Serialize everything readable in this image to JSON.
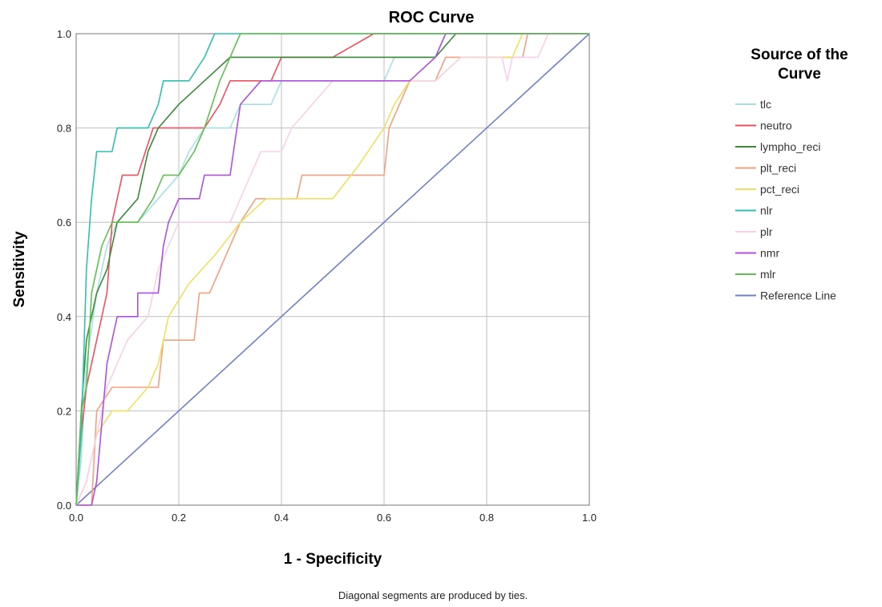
{
  "chart_data": {
    "type": "line",
    "title": "ROC Curve",
    "xlabel": "1 - Specificity",
    "ylabel": "Sensitivity",
    "xlim": [
      0.0,
      1.0
    ],
    "ylim": [
      0.0,
      1.0
    ],
    "xticks": [
      "0.0",
      "0.2",
      "0.4",
      "0.6",
      "0.8",
      "1.0"
    ],
    "yticks": [
      "0.0",
      "0.2",
      "0.4",
      "0.6",
      "0.8",
      "1.0"
    ],
    "grid": true,
    "legend_title": "Source of the Curve",
    "legend_position": "right",
    "footnote": "Diagonal segments are produced by ties.",
    "series": [
      {
        "name": "tlc",
        "color": "#a8e0e4",
        "points": [
          [
            0,
            0
          ],
          [
            0.01,
            0.1
          ],
          [
            0.02,
            0.3
          ],
          [
            0.04,
            0.45
          ],
          [
            0.06,
            0.55
          ],
          [
            0.08,
            0.6
          ],
          [
            0.12,
            0.6
          ],
          [
            0.16,
            0.65
          ],
          [
            0.2,
            0.7
          ],
          [
            0.22,
            0.75
          ],
          [
            0.25,
            0.8
          ],
          [
            0.3,
            0.8
          ],
          [
            0.32,
            0.85
          ],
          [
            0.38,
            0.85
          ],
          [
            0.4,
            0.9
          ],
          [
            0.5,
            0.9
          ],
          [
            0.6,
            0.9
          ],
          [
            0.62,
            0.95
          ],
          [
            0.7,
            0.95
          ],
          [
            0.72,
            1.0
          ],
          [
            1.0,
            1.0
          ]
        ]
      },
      {
        "name": "neutro",
        "color": "#f05060",
        "points": [
          [
            0,
            0
          ],
          [
            0.01,
            0.15
          ],
          [
            0.02,
            0.25
          ],
          [
            0.04,
            0.35
          ],
          [
            0.06,
            0.45
          ],
          [
            0.07,
            0.6
          ],
          [
            0.09,
            0.7
          ],
          [
            0.12,
            0.7
          ],
          [
            0.15,
            0.8
          ],
          [
            0.2,
            0.8
          ],
          [
            0.25,
            0.8
          ],
          [
            0.28,
            0.85
          ],
          [
            0.3,
            0.9
          ],
          [
            0.38,
            0.9
          ],
          [
            0.4,
            0.95
          ],
          [
            0.5,
            0.95
          ],
          [
            0.58,
            1.0
          ],
          [
            1.0,
            1.0
          ]
        ]
      },
      {
        "name": "lympho_reci",
        "color": "#3a8a3a",
        "points": [
          [
            0,
            0
          ],
          [
            0.01,
            0.2
          ],
          [
            0.02,
            0.35
          ],
          [
            0.04,
            0.45
          ],
          [
            0.06,
            0.5
          ],
          [
            0.08,
            0.6
          ],
          [
            0.12,
            0.65
          ],
          [
            0.14,
            0.75
          ],
          [
            0.16,
            0.8
          ],
          [
            0.2,
            0.85
          ],
          [
            0.25,
            0.9
          ],
          [
            0.3,
            0.95
          ],
          [
            0.4,
            0.95
          ],
          [
            0.5,
            0.95
          ],
          [
            0.6,
            0.95
          ],
          [
            0.7,
            0.95
          ],
          [
            0.74,
            1.0
          ],
          [
            1.0,
            1.0
          ]
        ]
      },
      {
        "name": "plt_reci",
        "color": "#f4a080",
        "points": [
          [
            0,
            0
          ],
          [
            0.03,
            0.0
          ],
          [
            0.04,
            0.2
          ],
          [
            0.07,
            0.25
          ],
          [
            0.12,
            0.25
          ],
          [
            0.16,
            0.25
          ],
          [
            0.17,
            0.35
          ],
          [
            0.2,
            0.35
          ],
          [
            0.23,
            0.35
          ],
          [
            0.24,
            0.45
          ],
          [
            0.26,
            0.45
          ],
          [
            0.28,
            0.5
          ],
          [
            0.3,
            0.55
          ],
          [
            0.32,
            0.6
          ],
          [
            0.35,
            0.65
          ],
          [
            0.4,
            0.65
          ],
          [
            0.43,
            0.65
          ],
          [
            0.44,
            0.7
          ],
          [
            0.55,
            0.7
          ],
          [
            0.6,
            0.7
          ],
          [
            0.61,
            0.8
          ],
          [
            0.63,
            0.85
          ],
          [
            0.65,
            0.9
          ],
          [
            0.7,
            0.9
          ],
          [
            0.72,
            0.95
          ],
          [
            0.8,
            0.95
          ],
          [
            0.87,
            0.95
          ],
          [
            0.88,
            1.0
          ],
          [
            1.0,
            1.0
          ]
        ]
      },
      {
        "name": "pct_reci",
        "color": "#f0e060",
        "points": [
          [
            0,
            0
          ],
          [
            0.02,
            0.05
          ],
          [
            0.04,
            0.15
          ],
          [
            0.07,
            0.2
          ],
          [
            0.1,
            0.2
          ],
          [
            0.14,
            0.25
          ],
          [
            0.16,
            0.3
          ],
          [
            0.18,
            0.4
          ],
          [
            0.22,
            0.47
          ],
          [
            0.27,
            0.53
          ],
          [
            0.32,
            0.6
          ],
          [
            0.37,
            0.65
          ],
          [
            0.45,
            0.65
          ],
          [
            0.5,
            0.65
          ],
          [
            0.55,
            0.72
          ],
          [
            0.6,
            0.8
          ],
          [
            0.62,
            0.85
          ],
          [
            0.65,
            0.9
          ],
          [
            0.7,
            0.9
          ],
          [
            0.72,
            0.92
          ],
          [
            0.75,
            0.95
          ],
          [
            0.85,
            0.95
          ],
          [
            0.87,
            1.0
          ],
          [
            1.0,
            1.0
          ]
        ]
      },
      {
        "name": "nlr",
        "color": "#30c0b0",
        "points": [
          [
            0,
            0
          ],
          [
            0.01,
            0.15
          ],
          [
            0.02,
            0.5
          ],
          [
            0.03,
            0.65
          ],
          [
            0.04,
            0.75
          ],
          [
            0.07,
            0.75
          ],
          [
            0.08,
            0.8
          ],
          [
            0.14,
            0.8
          ],
          [
            0.16,
            0.85
          ],
          [
            0.17,
            0.9
          ],
          [
            0.2,
            0.9
          ],
          [
            0.22,
            0.9
          ],
          [
            0.25,
            0.95
          ],
          [
            0.27,
            1.0
          ],
          [
            1.0,
            1.0
          ]
        ]
      },
      {
        "name": "plr",
        "color": "#f8d0e8",
        "points": [
          [
            0,
            0
          ],
          [
            0.02,
            0.05
          ],
          [
            0.04,
            0.15
          ],
          [
            0.06,
            0.25
          ],
          [
            0.08,
            0.3
          ],
          [
            0.1,
            0.35
          ],
          [
            0.14,
            0.4
          ],
          [
            0.16,
            0.5
          ],
          [
            0.18,
            0.55
          ],
          [
            0.2,
            0.6
          ],
          [
            0.3,
            0.6
          ],
          [
            0.34,
            0.7
          ],
          [
            0.36,
            0.75
          ],
          [
            0.4,
            0.75
          ],
          [
            0.42,
            0.8
          ],
          [
            0.5,
            0.9
          ],
          [
            0.6,
            0.9
          ],
          [
            0.7,
            0.9
          ],
          [
            0.75,
            0.95
          ],
          [
            0.83,
            0.95
          ],
          [
            0.84,
            0.9
          ],
          [
            0.85,
            0.95
          ],
          [
            0.9,
            0.95
          ],
          [
            0.92,
            1.0
          ],
          [
            1.0,
            1.0
          ]
        ]
      },
      {
        "name": "nmr",
        "color": "#b050e0",
        "points": [
          [
            0,
            0
          ],
          [
            0.03,
            0.0
          ],
          [
            0.04,
            0.05
          ],
          [
            0.06,
            0.3
          ],
          [
            0.07,
            0.35
          ],
          [
            0.08,
            0.4
          ],
          [
            0.12,
            0.4
          ],
          [
            0.12,
            0.45
          ],
          [
            0.16,
            0.45
          ],
          [
            0.17,
            0.55
          ],
          [
            0.18,
            0.6
          ],
          [
            0.2,
            0.65
          ],
          [
            0.24,
            0.65
          ],
          [
            0.25,
            0.7
          ],
          [
            0.3,
            0.7
          ],
          [
            0.32,
            0.85
          ],
          [
            0.36,
            0.9
          ],
          [
            0.45,
            0.9
          ],
          [
            0.55,
            0.9
          ],
          [
            0.65,
            0.9
          ],
          [
            0.7,
            0.95
          ],
          [
            0.72,
            1.0
          ],
          [
            1.0,
            1.0
          ]
        ]
      },
      {
        "name": "mlr",
        "color": "#60c050",
        "points": [
          [
            0,
            0
          ],
          [
            0.01,
            0.2
          ],
          [
            0.02,
            0.25
          ],
          [
            0.03,
            0.45
          ],
          [
            0.05,
            0.55
          ],
          [
            0.07,
            0.6
          ],
          [
            0.1,
            0.6
          ],
          [
            0.12,
            0.6
          ],
          [
            0.15,
            0.65
          ],
          [
            0.17,
            0.7
          ],
          [
            0.2,
            0.7
          ],
          [
            0.23,
            0.75
          ],
          [
            0.25,
            0.8
          ],
          [
            0.28,
            0.9
          ],
          [
            0.3,
            0.95
          ],
          [
            0.32,
            1.0
          ],
          [
            1.0,
            1.0
          ]
        ]
      },
      {
        "name": "Reference Line",
        "color": "#7080c8",
        "points": [
          [
            0,
            0
          ],
          [
            1,
            1
          ]
        ]
      }
    ]
  }
}
